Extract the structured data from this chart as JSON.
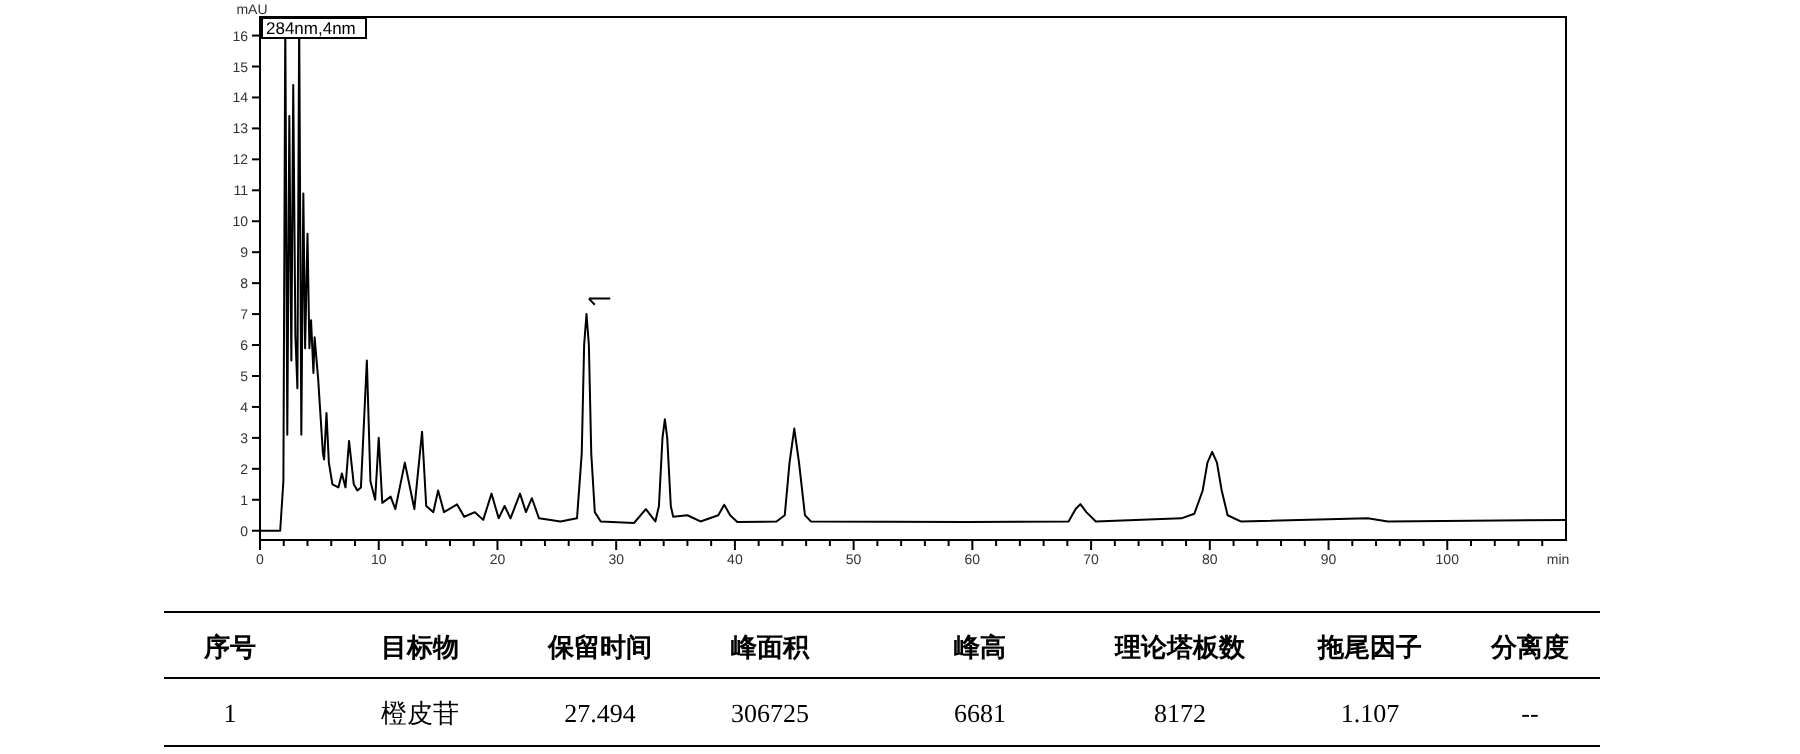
{
  "chart_data": {
    "type": "line",
    "xlabel": "min",
    "ylabel": "mAU",
    "xlim": [
      0,
      110
    ],
    "ylim": [
      -0.3,
      16.6
    ],
    "xticks": [
      0,
      {
        "value": 2,
        "label": null
      },
      {
        "value": 4,
        "label": null
      },
      {
        "value": 6,
        "label": null
      },
      {
        "value": 8,
        "label": null
      },
      10,
      {
        "value": 12,
        "label": null
      },
      {
        "value": 14,
        "label": null
      },
      {
        "value": 16,
        "label": null
      },
      {
        "value": 18,
        "label": null
      },
      20,
      {
        "value": 22,
        "label": null
      },
      {
        "value": 24,
        "label": null
      },
      {
        "value": 26,
        "label": null
      },
      {
        "value": 28,
        "label": null
      },
      30,
      {
        "value": 32,
        "label": null
      },
      {
        "value": 34,
        "label": null
      },
      {
        "value": 36,
        "label": null
      },
      {
        "value": 38,
        "label": null
      },
      40,
      {
        "value": 42,
        "label": null
      },
      {
        "value": 44,
        "label": null
      },
      {
        "value": 46,
        "label": null
      },
      {
        "value": 48,
        "label": null
      },
      50,
      {
        "value": 52,
        "label": null
      },
      {
        "value": 54,
        "label": null
      },
      {
        "value": 56,
        "label": null
      },
      {
        "value": 58,
        "label": null
      },
      60,
      {
        "value": 62,
        "label": null
      },
      {
        "value": 64,
        "label": null
      },
      {
        "value": 66,
        "label": null
      },
      {
        "value": 68,
        "label": null
      },
      70,
      {
        "value": 72,
        "label": null
      },
      {
        "value": 74,
        "label": null
      },
      {
        "value": 76,
        "label": null
      },
      {
        "value": 78,
        "label": null
      },
      80,
      {
        "value": 82,
        "label": null
      },
      {
        "value": 84,
        "label": null
      },
      {
        "value": 86,
        "label": null
      },
      {
        "value": 88,
        "label": null
      },
      90,
      {
        "value": 92,
        "label": null
      },
      {
        "value": 94,
        "label": null
      },
      {
        "value": 96,
        "label": null
      },
      {
        "value": 98,
        "label": null
      },
      100,
      {
        "value": 102,
        "label": null
      },
      {
        "value": 104,
        "label": null
      },
      {
        "value": 106,
        "label": null
      },
      {
        "value": 108,
        "label": null
      }
    ],
    "yticks": [
      0,
      1,
      2,
      3,
      4,
      5,
      6,
      7,
      8,
      9,
      10,
      11,
      12,
      13,
      14,
      15,
      16
    ],
    "grid": false,
    "marker": "none",
    "line_style": "solid",
    "series": [
      {
        "color": "#000000",
        "x": [
          0,
          1.7,
          1.97,
          2.13,
          2.3,
          2.47,
          2.64,
          2.8,
          2.98,
          3.15,
          3.3,
          3.48,
          3.65,
          3.8,
          4.0,
          4.16,
          4.3,
          4.5,
          4.6,
          4.9,
          5.3,
          5.4,
          5.6,
          5.8,
          6.1,
          6.6,
          6.9,
          7.2,
          7.5,
          7.9,
          8.2,
          8.5,
          9.0,
          9.3,
          9.7,
          10.0,
          10.3,
          11.0,
          11.4,
          12.2,
          13.0,
          13.65,
          14.0,
          14.6,
          15.0,
          15.5,
          16.6,
          17.2,
          18.1,
          18.8,
          19.5,
          20.1,
          20.6,
          21.1,
          21.9,
          22.4,
          22.9,
          23.5,
          25.3,
          26.7,
          27.1,
          27.3,
          27.5,
          27.7,
          27.9,
          28.2,
          28.7,
          31.5,
          32.5,
          33.3,
          33.6,
          33.9,
          34.1,
          34.3,
          34.6,
          34.8,
          36.0,
          37.1,
          38.6,
          39.1,
          39.6,
          40.2,
          43.5,
          44.2,
          44.6,
          45.0,
          45.4,
          45.9,
          46.4,
          59.5,
          68.1,
          68.7,
          69.1,
          69.6,
          70.4,
          77.6,
          78.7,
          79.4,
          79.8,
          80.2,
          80.6,
          81.0,
          81.5,
          82.6,
          93.3,
          95.0,
          110
        ],
        "values": [
          0,
          0,
          1.6,
          16.5,
          3.1,
          13.4,
          5.5,
          14.4,
          6.3,
          4.6,
          16.5,
          3.1,
          10.9,
          5.9,
          9.6,
          5.9,
          6.8,
          5.1,
          6.25,
          4.9,
          2.5,
          2.3,
          3.8,
          2.2,
          1.5,
          1.4,
          1.85,
          1.4,
          2.9,
          1.5,
          1.3,
          1.4,
          5.5,
          1.6,
          1.0,
          3.0,
          0.9,
          1.1,
          0.7,
          2.2,
          0.7,
          3.2,
          0.8,
          0.6,
          1.3,
          0.6,
          0.85,
          0.45,
          0.6,
          0.35,
          1.2,
          0.4,
          0.8,
          0.4,
          1.2,
          0.6,
          1.05,
          0.4,
          0.3,
          0.4,
          2.5,
          6.0,
          7.0,
          6.0,
          2.5,
          0.6,
          0.3,
          0.25,
          0.7,
          0.3,
          0.8,
          3.0,
          3.6,
          3.0,
          0.8,
          0.45,
          0.5,
          0.3,
          0.5,
          0.84,
          0.5,
          0.28,
          0.3,
          0.5,
          2.2,
          3.3,
          2.2,
          0.5,
          0.3,
          0.28,
          0.3,
          0.7,
          0.86,
          0.6,
          0.3,
          0.4,
          0.55,
          1.3,
          2.2,
          2.55,
          2.2,
          1.3,
          0.5,
          0.3,
          0.4,
          0.3,
          0.35
        ]
      }
    ],
    "annotations": [
      "284nm,4nm",
      "序号",
      "目标物",
      "保留时间",
      "峰面积",
      "峰高",
      "理论塔板数",
      "拖尾因子",
      "分离度",
      "1",
      "橙皮苷",
      "27.494",
      "306725",
      "6681",
      "8172",
      "1.107",
      "--"
    ]
  }
}
